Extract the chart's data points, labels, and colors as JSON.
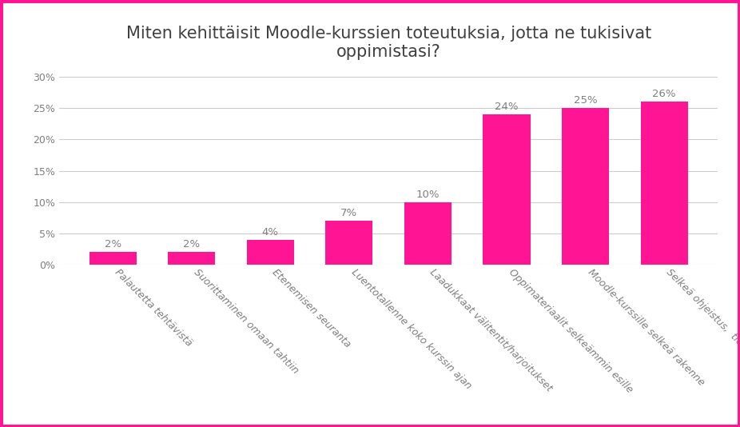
{
  "title": "Miten kehittäisit Moodle-kurssien toteutuksia, jotta ne tukisivat\noppimistasi?",
  "categories": [
    "Palautetta tehtävistä",
    "Suorittaminen omaan tahtiin",
    "Etenemisen seuranta",
    "Luentotallenne koko kurssin ajan",
    "Laadukkaat välitentit/harjoitukset",
    "Oppimateriaalit selkeämmin esille",
    "Moodle-kurssille selkeä rakenne",
    "Selkeä ohjeistus,  tiedottaminen..."
  ],
  "values": [
    2,
    2,
    4,
    7,
    10,
    24,
    25,
    26
  ],
  "bar_color": "#FF1493",
  "background_color": "#ffffff",
  "border_color": "#FF1493",
  "ylim": [
    0,
    30
  ],
  "yticks": [
    0,
    5,
    10,
    15,
    20,
    25,
    30
  ],
  "ytick_labels": [
    "0%",
    "5%",
    "10%",
    "15%",
    "20%",
    "25%",
    "30%"
  ],
  "title_fontsize": 15,
  "label_fontsize": 9,
  "value_fontsize": 9.5,
  "grid_color": "#cccccc",
  "text_color": "#7f7f7f"
}
